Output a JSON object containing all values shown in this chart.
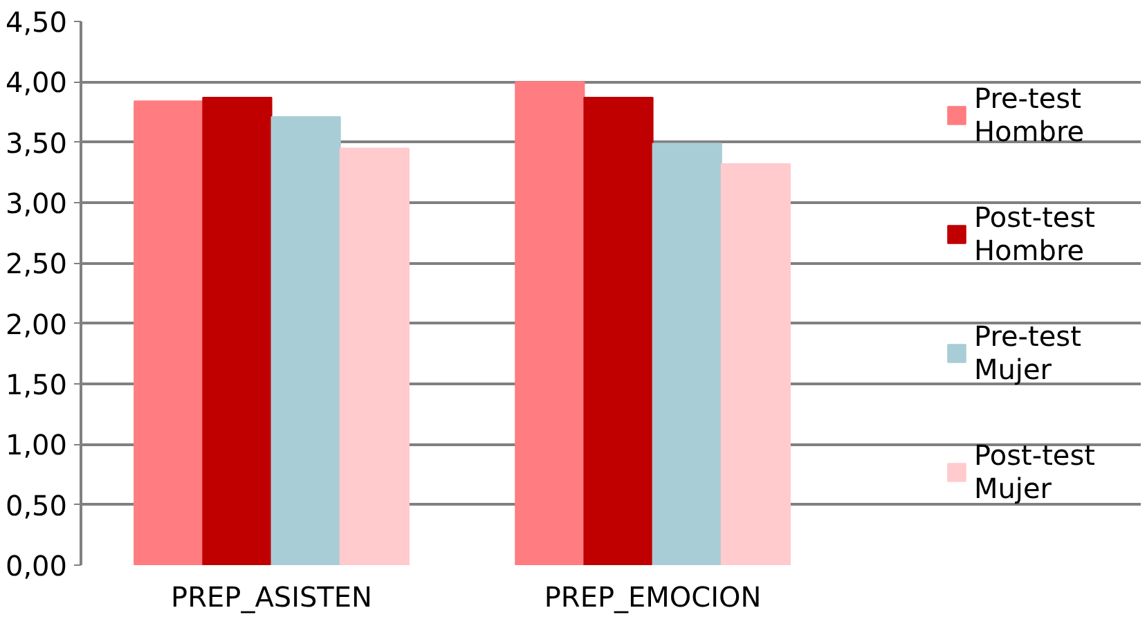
{
  "chart_data": {
    "type": "bar",
    "categories": [
      "PREP_ASISTEN",
      "PREP_EMOCION"
    ],
    "series": [
      {
        "name": "Pre-test Hombre",
        "color": "#ff7c80",
        "values": [
          3.84,
          4.0
        ]
      },
      {
        "name": "Post-test Hombre",
        "color": "#c00000",
        "values": [
          3.87,
          3.87
        ]
      },
      {
        "name": "Pre-test Mujer",
        "color": "#a9cdd6",
        "values": [
          3.71,
          3.49
        ]
      },
      {
        "name": "Post-test Mujer",
        "color": "#ffcbcd",
        "values": [
          3.45,
          3.32
        ]
      }
    ],
    "ylim": [
      0,
      4.5
    ],
    "yticks": [
      {
        "value": 0,
        "label": "0,00"
      },
      {
        "value": 0.5,
        "label": "0,50"
      },
      {
        "value": 1,
        "label": "1,00"
      },
      {
        "value": 1.5,
        "label": "1,50"
      },
      {
        "value": 2,
        "label": "2,00"
      },
      {
        "value": 2.5,
        "label": "2,50"
      },
      {
        "value": 3,
        "label": "3,00"
      },
      {
        "value": 3.5,
        "label": "3,50"
      },
      {
        "value": 4,
        "label": "4,00"
      },
      {
        "value": 4.5,
        "label": "4,50"
      }
    ],
    "grid": "y",
    "legend": "right"
  }
}
